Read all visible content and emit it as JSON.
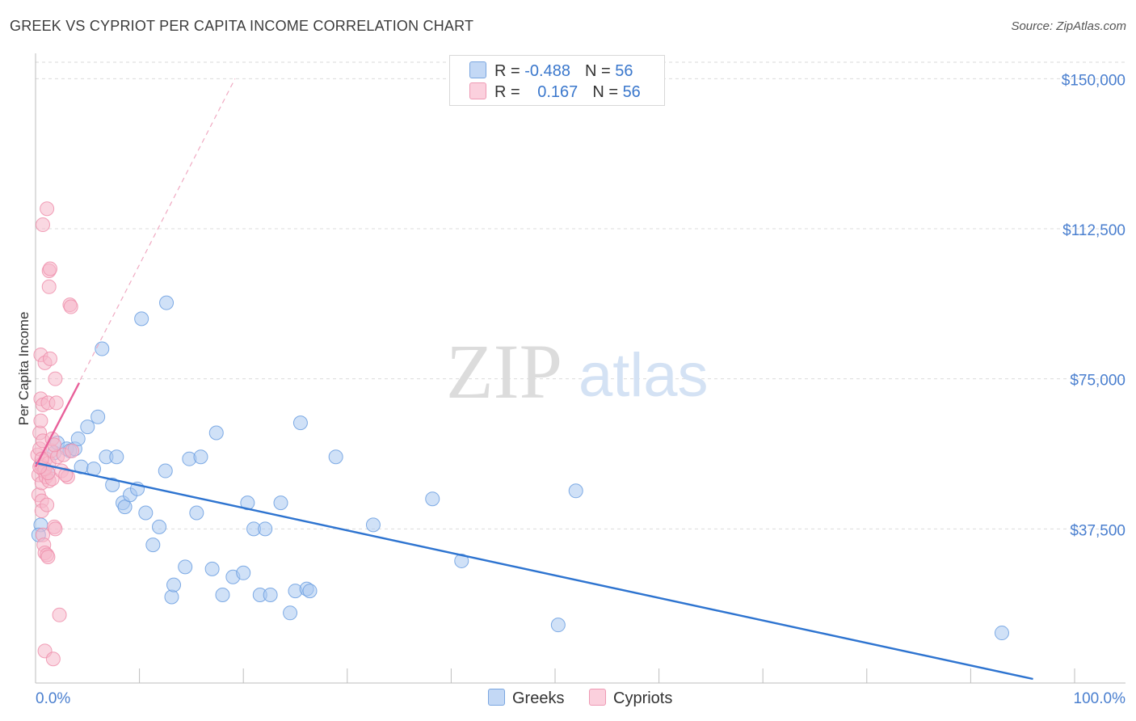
{
  "header": {
    "title": "GREEK VS CYPRIOT PER CAPITA INCOME CORRELATION CHART",
    "source": "Source: ZipAtlas.com"
  },
  "watermark": {
    "zip": "ZIP",
    "atlas": "atlas"
  },
  "legend": {
    "rows": [
      {
        "r_label": "R = ",
        "r_value": "-0.488",
        "n_label": "N = ",
        "n_value": "56",
        "color": "#a9c8f0"
      },
      {
        "r_label": "R = ",
        "r_value": "0.167",
        "n_label": "N = ",
        "n_value": "56",
        "color": "#f6b8cb"
      }
    ]
  },
  "bottom_legend": [
    {
      "label": "Greeks",
      "color": "#a9c8f0"
    },
    {
      "label": "Cypriots",
      "color": "#f6b8cb"
    }
  ],
  "chart_data": {
    "type": "scatter",
    "title": "GREEK VS CYPRIOT PER CAPITA INCOME CORRELATION CHART",
    "xlabel": "",
    "ylabel": "Per Capita Income",
    "xlim": [
      0,
      100
    ],
    "ylim": [
      0,
      155000
    ],
    "y_ticks": [
      {
        "value": 37500,
        "label": "$37,500"
      },
      {
        "value": 75000,
        "label": "$75,000"
      },
      {
        "value": 112500,
        "label": "$112,500"
      },
      {
        "value": 150000,
        "label": "$150,000"
      }
    ],
    "x_tick_labels": [
      {
        "value": 0,
        "label": "0.0%"
      },
      {
        "value": 100,
        "label": "100.0%"
      }
    ],
    "grid": true,
    "series": [
      {
        "name": "Greeks",
        "color": "#a9c8f0",
        "stroke": "#6a9de0",
        "trend_color": "#2e74d0",
        "trend": {
          "x0": 0,
          "y0": 54000,
          "x1": 96,
          "y1": 0
        },
        "points": [
          [
            0.5,
            38500
          ],
          [
            1.2,
            51500
          ],
          [
            1.8,
            56500
          ],
          [
            2.1,
            59000
          ],
          [
            3.0,
            57500
          ],
          [
            3.3,
            57000
          ],
          [
            3.8,
            57500
          ],
          [
            4.1,
            60000
          ],
          [
            4.4,
            53000
          ],
          [
            5.0,
            63000
          ],
          [
            5.6,
            52500
          ],
          [
            6.0,
            65500
          ],
          [
            6.4,
            82500
          ],
          [
            6.8,
            55500
          ],
          [
            7.4,
            48500
          ],
          [
            7.8,
            55500
          ],
          [
            8.4,
            44000
          ],
          [
            8.6,
            43000
          ],
          [
            9.1,
            46000
          ],
          [
            9.8,
            47500
          ],
          [
            10.2,
            90000
          ],
          [
            10.6,
            41500
          ],
          [
            11.3,
            33500
          ],
          [
            11.9,
            38000
          ],
          [
            12.5,
            52000
          ],
          [
            12.6,
            94000
          ],
          [
            13.1,
            20500
          ],
          [
            13.3,
            23500
          ],
          [
            14.4,
            28000
          ],
          [
            14.8,
            55000
          ],
          [
            15.5,
            41500
          ],
          [
            15.9,
            55500
          ],
          [
            17.0,
            27500
          ],
          [
            17.4,
            61500
          ],
          [
            18.0,
            21000
          ],
          [
            19.0,
            25500
          ],
          [
            20.0,
            26500
          ],
          [
            20.4,
            44000
          ],
          [
            21.0,
            37500
          ],
          [
            21.6,
            21000
          ],
          [
            22.1,
            37500
          ],
          [
            22.6,
            21000
          ],
          [
            23.6,
            44000
          ],
          [
            24.5,
            16500
          ],
          [
            25.0,
            22000
          ],
          [
            25.5,
            64000
          ],
          [
            26.1,
            22500
          ],
          [
            26.4,
            22000
          ],
          [
            28.9,
            55500
          ],
          [
            32.5,
            38500
          ],
          [
            38.2,
            45000
          ],
          [
            41.0,
            29500
          ],
          [
            50.3,
            13500
          ],
          [
            52.0,
            47000
          ],
          [
            93.0,
            11500
          ],
          [
            0.3,
            36000
          ]
        ]
      },
      {
        "name": "Cypriots",
        "color": "#f6b8cb",
        "stroke": "#ee8fab",
        "trend_color": "#e8609a",
        "trend": {
          "x0": 0,
          "y0": 53000,
          "x1": 4.2,
          "y1": 74000
        },
        "extension": {
          "x0": 0,
          "y0": 53000,
          "x1": 19.2,
          "y1": 150000
        },
        "points": [
          [
            0.2,
            56000
          ],
          [
            0.3,
            51000
          ],
          [
            0.3,
            46000
          ],
          [
            0.4,
            61500
          ],
          [
            0.4,
            57500
          ],
          [
            0.5,
            70000
          ],
          [
            0.5,
            81000
          ],
          [
            0.5,
            64500
          ],
          [
            0.5,
            53500
          ],
          [
            0.6,
            49000
          ],
          [
            0.6,
            44500
          ],
          [
            0.6,
            42000
          ],
          [
            0.7,
            113500
          ],
          [
            0.7,
            68500
          ],
          [
            0.7,
            59500
          ],
          [
            0.7,
            36000
          ],
          [
            0.8,
            52000
          ],
          [
            0.8,
            33500
          ],
          [
            0.9,
            31500
          ],
          [
            0.9,
            7000
          ],
          [
            0.9,
            79000
          ],
          [
            1.0,
            55000
          ],
          [
            1.0,
            50500
          ],
          [
            1.1,
            117500
          ],
          [
            1.1,
            43500
          ],
          [
            1.1,
            31000
          ],
          [
            1.2,
            69000
          ],
          [
            1.2,
            30500
          ],
          [
            1.3,
            102000
          ],
          [
            1.3,
            98000
          ],
          [
            1.3,
            54000
          ],
          [
            1.3,
            49500
          ],
          [
            1.4,
            102500
          ],
          [
            1.4,
            80000
          ],
          [
            1.5,
            57000
          ],
          [
            1.6,
            60000
          ],
          [
            1.6,
            50000
          ],
          [
            1.7,
            5000
          ],
          [
            1.8,
            38000
          ],
          [
            1.9,
            37500
          ],
          [
            1.9,
            75000
          ],
          [
            2.0,
            69000
          ],
          [
            2.1,
            55500
          ],
          [
            2.3,
            16000
          ],
          [
            2.5,
            52000
          ],
          [
            2.7,
            56000
          ],
          [
            3.1,
            50500
          ],
          [
            3.3,
            93500
          ],
          [
            3.4,
            93000
          ],
          [
            3.5,
            57000
          ],
          [
            0.9,
            52500
          ],
          [
            1.2,
            51500
          ],
          [
            0.4,
            53000
          ],
          [
            1.8,
            58500
          ],
          [
            2.9,
            51000
          ],
          [
            0.6,
            55000
          ]
        ]
      }
    ]
  }
}
